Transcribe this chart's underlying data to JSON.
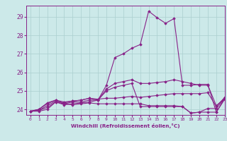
{
  "xlabel": "Windchill (Refroidissement éolien,°C)",
  "xlim": [
    -0.5,
    23
  ],
  "ylim": [
    23.7,
    29.6
  ],
  "yticks": [
    24,
    25,
    26,
    27,
    28,
    29
  ],
  "xticks": [
    0,
    1,
    2,
    3,
    4,
    5,
    6,
    7,
    8,
    9,
    10,
    11,
    12,
    13,
    14,
    15,
    16,
    17,
    18,
    19,
    20,
    21,
    22,
    23
  ],
  "bg_color": "#cce9e9",
  "grid_color": "#aacfcf",
  "line_color": "#882288",
  "series": [
    [
      23.9,
      23.9,
      24.0,
      24.4,
      24.3,
      24.4,
      24.4,
      24.5,
      24.5,
      25.3,
      26.8,
      27.0,
      27.3,
      27.5,
      29.3,
      28.95,
      28.65,
      28.9,
      25.3,
      25.3,
      25.35,
      25.35,
      23.85,
      24.6
    ],
    [
      23.9,
      23.95,
      24.1,
      24.4,
      24.25,
      24.3,
      24.35,
      24.4,
      24.5,
      25.0,
      25.2,
      25.3,
      25.4,
      24.15,
      24.15,
      24.15,
      24.15,
      24.15,
      24.15,
      23.8,
      23.85,
      24.05,
      24.05,
      24.6
    ],
    [
      23.9,
      23.95,
      24.2,
      24.45,
      24.35,
      24.45,
      24.5,
      24.6,
      24.5,
      25.1,
      25.4,
      25.5,
      25.6,
      25.4,
      25.4,
      25.45,
      25.5,
      25.6,
      25.5,
      25.4,
      25.3,
      25.3,
      24.2,
      24.6
    ],
    [
      23.9,
      24.0,
      24.3,
      24.5,
      24.3,
      24.25,
      24.3,
      24.35,
      24.3,
      24.3,
      24.3,
      24.3,
      24.3,
      24.3,
      24.2,
      24.2,
      24.2,
      24.2,
      24.15,
      23.8,
      23.85,
      23.85,
      23.85,
      24.55
    ],
    [
      23.9,
      24.0,
      24.35,
      24.5,
      24.4,
      24.45,
      24.5,
      24.6,
      24.55,
      24.6,
      24.6,
      24.65,
      24.7,
      24.65,
      24.7,
      24.75,
      24.8,
      24.85,
      24.85,
      24.85,
      24.85,
      24.9,
      24.15,
      24.65
    ]
  ]
}
